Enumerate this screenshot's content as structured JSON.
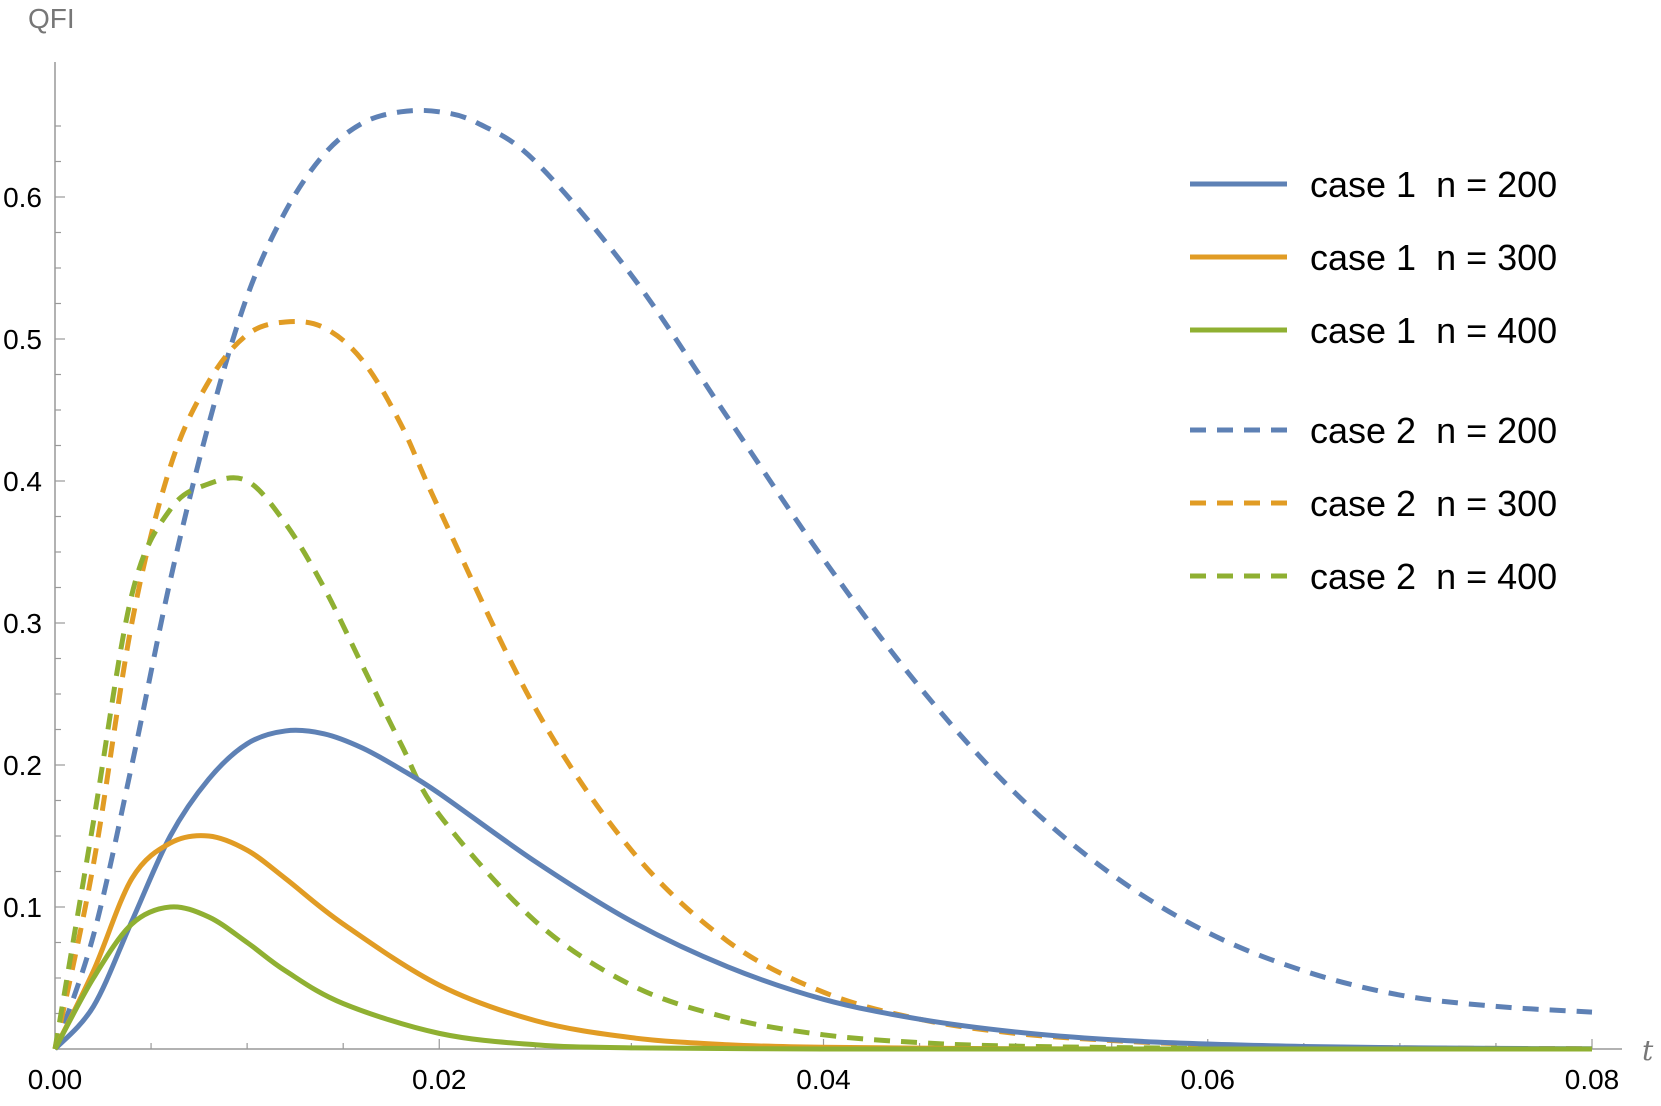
{
  "chart_data": {
    "type": "line",
    "title": "",
    "xlabel": "t",
    "ylabel": "QFI",
    "xlim": [
      0,
      0.08
    ],
    "ylim": [
      0,
      0.7
    ],
    "x_ticks": [
      "0.00",
      "0.02",
      "0.04",
      "0.06",
      "0.08"
    ],
    "y_ticks": [
      "0.1",
      "0.2",
      "0.3",
      "0.4",
      "0.5",
      "0.6"
    ],
    "x_tick_values": [
      0,
      0.02,
      0.04,
      0.06,
      0.08
    ],
    "y_tick_values": [
      0.1,
      0.2,
      0.3,
      0.4,
      0.5,
      0.6
    ],
    "legend_position": "top-right",
    "series": [
      {
        "name": "case 1  n = 200",
        "style": "solid",
        "color": "#5e81b5",
        "x": [
          0,
          0.002,
          0.004,
          0.006,
          0.008,
          0.01,
          0.012,
          0.014,
          0.016,
          0.018,
          0.02,
          0.025,
          0.03,
          0.035,
          0.04,
          0.045,
          0.05,
          0.055,
          0.06,
          0.065,
          0.07,
          0.075,
          0.08
        ],
        "y": [
          0,
          0.03,
          0.09,
          0.15,
          0.19,
          0.215,
          0.224,
          0.222,
          0.212,
          0.197,
          0.18,
          0.132,
          0.09,
          0.058,
          0.035,
          0.021,
          0.012,
          0.0065,
          0.0035,
          0.0018,
          0.0009,
          0.0004,
          0.0002
        ]
      },
      {
        "name": "case 1  n = 300",
        "style": "solid",
        "color": "#e19c24",
        "x": [
          0,
          0.002,
          0.004,
          0.006,
          0.008,
          0.01,
          0.012,
          0.015,
          0.02,
          0.025,
          0.03,
          0.035,
          0.04,
          0.05,
          0.06,
          0.07,
          0.08
        ],
        "y": [
          0,
          0.055,
          0.12,
          0.145,
          0.15,
          0.14,
          0.12,
          0.088,
          0.045,
          0.02,
          0.008,
          0.003,
          0.0012,
          0.0002,
          0,
          0,
          0
        ]
      },
      {
        "name": "case 1  n = 400",
        "style": "solid",
        "color": "#8fb032",
        "x": [
          0,
          0.002,
          0.004,
          0.006,
          0.008,
          0.01,
          0.012,
          0.015,
          0.02,
          0.025,
          0.03,
          0.04,
          0.05,
          0.06,
          0.07,
          0.08
        ],
        "y": [
          0,
          0.05,
          0.088,
          0.1,
          0.093,
          0.075,
          0.055,
          0.032,
          0.011,
          0.003,
          0.0008,
          0,
          0,
          0,
          0,
          0
        ]
      },
      {
        "name": "case 2  n = 200",
        "style": "dashed",
        "color": "#5e81b5",
        "x": [
          0,
          0.002,
          0.004,
          0.006,
          0.008,
          0.01,
          0.012,
          0.014,
          0.016,
          0.018,
          0.02,
          0.022,
          0.025,
          0.03,
          0.035,
          0.04,
          0.045,
          0.05,
          0.055,
          0.06,
          0.065,
          0.07,
          0.075,
          0.08
        ],
        "y": [
          0,
          0.08,
          0.2,
          0.33,
          0.44,
          0.53,
          0.59,
          0.63,
          0.652,
          0.66,
          0.66,
          0.652,
          0.625,
          0.545,
          0.445,
          0.345,
          0.255,
          0.18,
          0.123,
          0.082,
          0.055,
          0.038,
          0.03,
          0.026
        ]
      },
      {
        "name": "case 2  n = 300",
        "style": "dashed",
        "color": "#e19c24",
        "x": [
          0,
          0.002,
          0.004,
          0.006,
          0.008,
          0.01,
          0.012,
          0.014,
          0.016,
          0.018,
          0.02,
          0.025,
          0.03,
          0.035,
          0.04,
          0.045,
          0.05,
          0.055,
          0.06,
          0.065,
          0.07,
          0.075,
          0.08
        ],
        "y": [
          0,
          0.13,
          0.3,
          0.41,
          0.47,
          0.503,
          0.512,
          0.508,
          0.485,
          0.44,
          0.38,
          0.24,
          0.14,
          0.076,
          0.04,
          0.021,
          0.011,
          0.006,
          0.003,
          0.0015,
          0.0008,
          0.0004,
          0.0002
        ]
      },
      {
        "name": "case 2  n = 400",
        "style": "dashed",
        "color": "#8fb032",
        "x": [
          0,
          0.002,
          0.004,
          0.006,
          0.008,
          0.01,
          0.012,
          0.014,
          0.016,
          0.018,
          0.02,
          0.025,
          0.03,
          0.035,
          0.04,
          0.045,
          0.05,
          0.06,
          0.07,
          0.08
        ],
        "y": [
          0,
          0.16,
          0.32,
          0.38,
          0.398,
          0.4,
          0.37,
          0.325,
          0.27,
          0.215,
          0.165,
          0.09,
          0.045,
          0.022,
          0.01,
          0.0045,
          0.002,
          0.0004,
          0,
          0
        ]
      }
    ]
  }
}
